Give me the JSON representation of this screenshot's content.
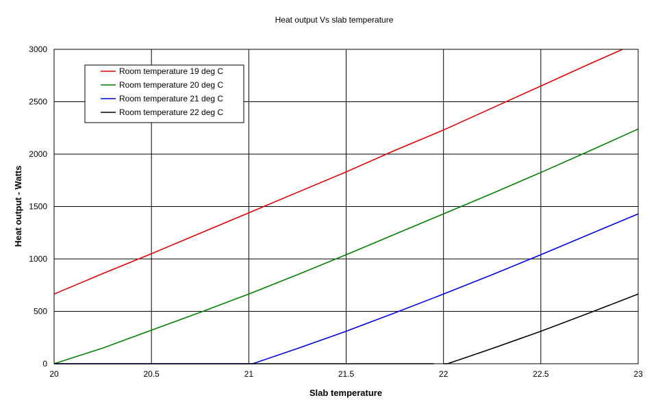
{
  "chart_data": {
    "type": "line",
    "title": "Heat output Vs slab temperature",
    "xlabel": "Slab temperature",
    "ylabel": "Heat output - Watts",
    "xlim": [
      20,
      23
    ],
    "ylim": [
      0,
      3000
    ],
    "xticks": [
      20,
      20.5,
      21,
      21.5,
      22,
      22.5,
      23
    ],
    "yticks": [
      0,
      500,
      1000,
      1500,
      2000,
      2500,
      3000
    ],
    "xtick_labels": [
      "20",
      "20.5",
      "21",
      "21.5",
      "22",
      "22.5",
      "23"
    ],
    "ytick_labels": [
      "0",
      "500",
      "1000",
      "1500",
      "2000",
      "2500",
      "3000"
    ],
    "grid": true,
    "legend_position": "top-left",
    "series": [
      {
        "name": "Room temperature 19 deg C",
        "color": "#e00000",
        "x": [
          20,
          20.25,
          20.5,
          20.75,
          21,
          21.25,
          21.5,
          21.75,
          22,
          22.25,
          22.5,
          22.75,
          22.92
        ],
        "y": [
          665,
          860,
          1050,
          1245,
          1440,
          1635,
          1830,
          2035,
          2230,
          2440,
          2650,
          2860,
          3000
        ]
      },
      {
        "name": "Room temperature 20 deg C",
        "color": "#008000",
        "x": [
          20,
          20.25,
          20.5,
          20.75,
          21,
          21.25,
          21.5,
          21.75,
          22,
          22.25,
          22.5,
          22.75,
          23
        ],
        "y": [
          0,
          150,
          320,
          490,
          665,
          850,
          1040,
          1235,
          1430,
          1625,
          1825,
          2030,
          2240
        ]
      },
      {
        "name": "Room temperature 21 deg C",
        "color": "#0000e0",
        "x": [
          20,
          21,
          21.02,
          21.25,
          21.5,
          21.75,
          22,
          22.25,
          22.5,
          22.75,
          23
        ],
        "y": [
          0,
          0,
          0,
          145,
          310,
          485,
          665,
          850,
          1040,
          1235,
          1430
        ]
      },
      {
        "name": "Room temperature 22 deg C",
        "color": "#000000",
        "segments": [
          {
            "x": [
              20,
              21.95
            ],
            "y": [
              0,
              0
            ]
          },
          {
            "x": [
              22,
              22.02,
              22.1,
              22.25,
              22.5,
              22.75,
              23
            ],
            "y": [
              0,
              0,
              50,
              145,
              310,
              485,
              665
            ]
          }
        ]
      }
    ]
  }
}
